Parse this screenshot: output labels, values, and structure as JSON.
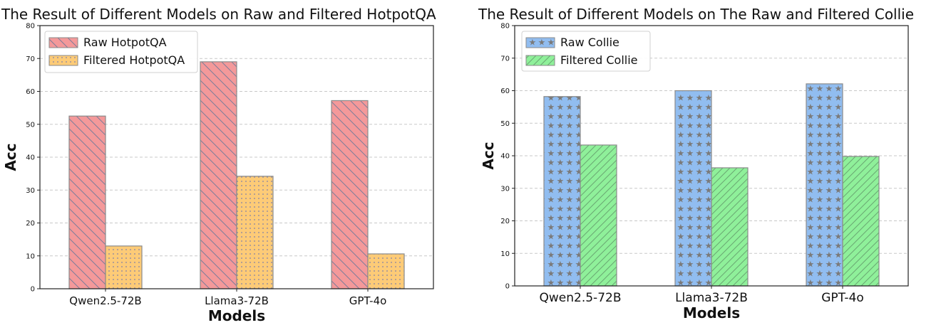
{
  "chart_data": [
    {
      "type": "bar",
      "title": "The Result of Different Models on Raw and Filtered HotpotQA",
      "xlabel": "Models",
      "ylabel": "Acc",
      "categories": [
        "Qwen2.5-72B",
        "Llama3-72B",
        "GPT-4o"
      ],
      "series": [
        {
          "name": "Raw HotpotQA",
          "values": [
            52.5,
            69,
            57.2
          ],
          "color": "#f4999a",
          "edge": "#8a8a8a",
          "pattern": "backslash"
        },
        {
          "name": "Filtered HotpotQA",
          "values": [
            13,
            34.2,
            10.6
          ],
          "color": "#fdcb77",
          "edge": "#8a8a8a",
          "pattern": "dots"
        }
      ],
      "ylim": [
        0,
        80
      ],
      "yticks": [
        0,
        10,
        20,
        30,
        40,
        50,
        60,
        70,
        80
      ],
      "grid": true,
      "legend": "top-left"
    },
    {
      "type": "bar",
      "title": "The Result of Different Models on The Raw and Filtered Collie",
      "xlabel": "Models",
      "ylabel": "Acc",
      "categories": [
        "Qwen2.5-72B",
        "Llama3-72B",
        "GPT-4o"
      ],
      "series": [
        {
          "name": "Raw Collie",
          "values": [
            58.2,
            60,
            62.1
          ],
          "color": "#91bdf0",
          "edge": "#8a8a8a",
          "pattern": "stars"
        },
        {
          "name": "Filtered Collie",
          "values": [
            43.3,
            36.3,
            39.8
          ],
          "color": "#8ff09a",
          "edge": "#8a8a8a",
          "pattern": "slash"
        }
      ],
      "ylim": [
        0,
        80
      ],
      "yticks": [
        0,
        10,
        20,
        30,
        40,
        50,
        60,
        70,
        80
      ],
      "grid": true,
      "legend": "top-left"
    }
  ]
}
